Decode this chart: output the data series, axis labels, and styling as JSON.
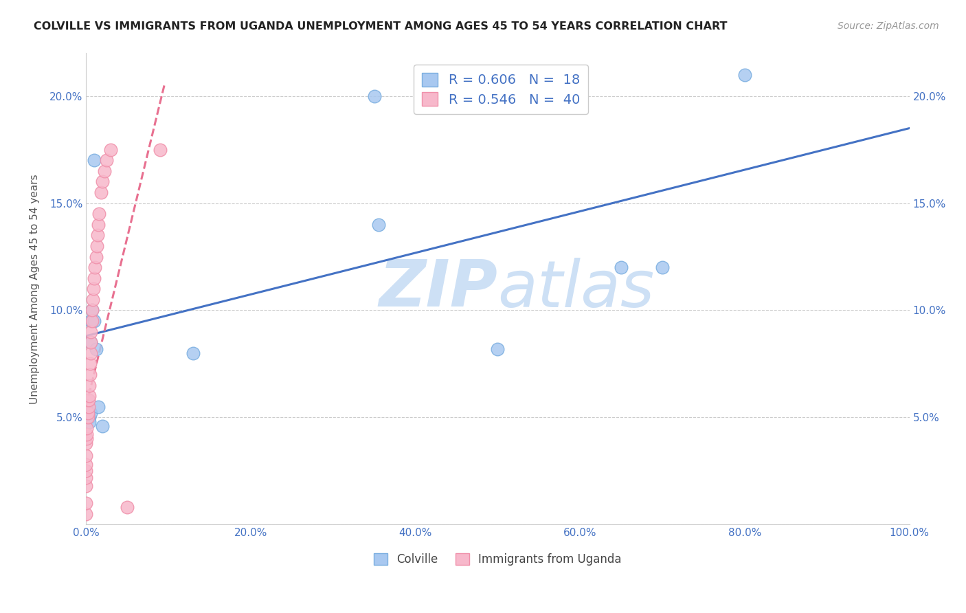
{
  "title": "COLVILLE VS IMMIGRANTS FROM UGANDA UNEMPLOYMENT AMONG AGES 45 TO 54 YEARS CORRELATION CHART",
  "source": "Source: ZipAtlas.com",
  "ylabel": "Unemployment Among Ages 45 to 54 years",
  "xlabel_colville": "Colville",
  "xlabel_uganda": "Immigrants from Uganda",
  "xlim": [
    0,
    1.0
  ],
  "ylim": [
    0,
    0.22
  ],
  "x_ticks": [
    0.0,
    0.2,
    0.4,
    0.6,
    0.8,
    1.0
  ],
  "x_tick_labels": [
    "0.0%",
    "20.0%",
    "40.0%",
    "60.0%",
    "80.0%",
    "100.0%"
  ],
  "y_ticks": [
    0.0,
    0.05,
    0.1,
    0.15,
    0.2
  ],
  "y_tick_labels": [
    "",
    "5.0%",
    "10.0%",
    "15.0%",
    "20.0%"
  ],
  "legend_r_colville": "R = 0.606",
  "legend_n_colville": "N =  18",
  "legend_r_uganda": "R = 0.546",
  "legend_n_uganda": "N =  40",
  "colville_color": "#a8c8f0",
  "uganda_color": "#f7b8cb",
  "colville_edge_color": "#7aaee0",
  "uganda_edge_color": "#f090aa",
  "colville_line_color": "#4472C4",
  "uganda_line_color": "#E87090",
  "tick_color": "#4472C4",
  "watermark_color": "#cde0f5",
  "colville_scatter_x": [
    0.004,
    0.004,
    0.006,
    0.006,
    0.006,
    0.007,
    0.01,
    0.01,
    0.012,
    0.015,
    0.02,
    0.13,
    0.35,
    0.355,
    0.5,
    0.65,
    0.7,
    0.8
  ],
  "colville_scatter_y": [
    0.05,
    0.048,
    0.052,
    0.095,
    0.085,
    0.1,
    0.095,
    0.17,
    0.082,
    0.055,
    0.046,
    0.08,
    0.2,
    0.14,
    0.082,
    0.12,
    0.12,
    0.21
  ],
  "uganda_scatter_x": [
    0.0,
    0.0,
    0.0,
    0.0,
    0.0,
    0.0,
    0.0,
    0.0,
    0.001,
    0.001,
    0.001,
    0.002,
    0.002,
    0.003,
    0.003,
    0.004,
    0.004,
    0.005,
    0.005,
    0.006,
    0.006,
    0.006,
    0.007,
    0.007,
    0.008,
    0.009,
    0.01,
    0.011,
    0.012,
    0.013,
    0.014,
    0.015,
    0.016,
    0.018,
    0.02,
    0.022,
    0.025,
    0.03,
    0.05,
    0.09
  ],
  "uganda_scatter_y": [
    0.005,
    0.01,
    0.018,
    0.022,
    0.025,
    0.028,
    0.032,
    0.038,
    0.04,
    0.042,
    0.045,
    0.05,
    0.052,
    0.055,
    0.058,
    0.06,
    0.065,
    0.07,
    0.075,
    0.08,
    0.085,
    0.09,
    0.095,
    0.1,
    0.105,
    0.11,
    0.115,
    0.12,
    0.125,
    0.13,
    0.135,
    0.14,
    0.145,
    0.155,
    0.16,
    0.165,
    0.17,
    0.175,
    0.008,
    0.175
  ],
  "colville_trendline_x": [
    0.0,
    1.0
  ],
  "colville_trendline_y": [
    0.088,
    0.185
  ],
  "uganda_trendline_x": [
    0.0,
    0.095
  ],
  "uganda_trendline_y": [
    0.055,
    0.205
  ]
}
